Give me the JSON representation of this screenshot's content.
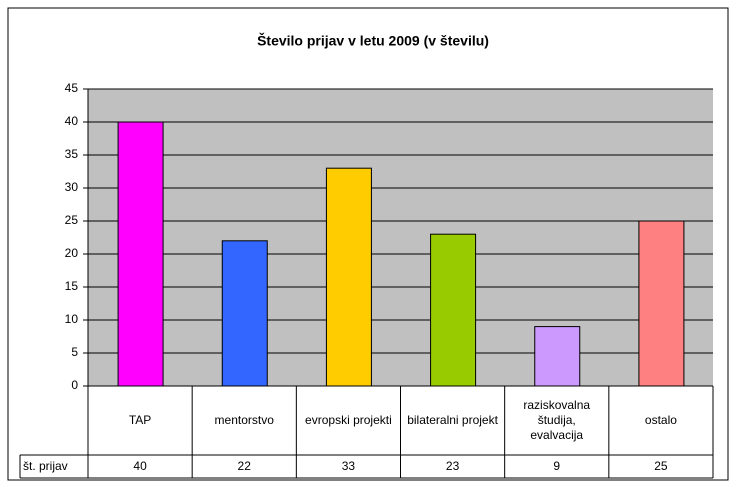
{
  "chart_data": {
    "type": "bar",
    "title": "Število prijav v letu 2009 (v številu)",
    "categories": [
      "TAP",
      "mentorstvo",
      "evropski projekti",
      "bilateralni projekt",
      "raziskovalna študija, evalvacija",
      "ostalo"
    ],
    "series": [
      {
        "name": "št. prijav",
        "values": [
          40,
          22,
          33,
          23,
          9,
          25
        ],
        "colors": [
          "#ff00ff",
          "#3366ff",
          "#ffcc00",
          "#99cc00",
          "#cc99ff",
          "#ff8080"
        ]
      }
    ],
    "ylim": [
      0,
      45
    ],
    "yticks": [
      0,
      5,
      10,
      15,
      20,
      25,
      30,
      35,
      40,
      45
    ],
    "grid": true,
    "data_table": true
  }
}
